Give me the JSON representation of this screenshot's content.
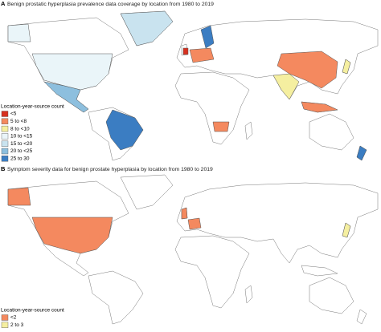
{
  "panels": [
    {
      "label": "A",
      "title": "Benign prostatic hyperplasia prevalence data coverage by location from 1980 to 2019",
      "legend": {
        "title": "Location-year-source count",
        "items": [
          {
            "label": "<5",
            "color": "#d7301f"
          },
          {
            "label": "5 to <8",
            "color": "#f4895f"
          },
          {
            "label": "8 to <10",
            "color": "#f5efa0"
          },
          {
            "label": "10 to <15",
            "color": "#eaf5f9"
          },
          {
            "label": "15 to <20",
            "color": "#c9e3ef"
          },
          {
            "label": "20 to <25",
            "color": "#8dbfde"
          },
          {
            "label": "25 to 30",
            "color": "#3b7dc2"
          }
        ]
      }
    },
    {
      "label": "B",
      "title": "Symptom severity data for benign prostate hyperplasia by location from 1980 to 2019",
      "legend": {
        "title": "Location-year-source count",
        "items": [
          {
            "label": "<2",
            "color": "#f4895f"
          },
          {
            "label": "2 to 3",
            "color": "#f5efa0"
          }
        ]
      }
    }
  ]
}
